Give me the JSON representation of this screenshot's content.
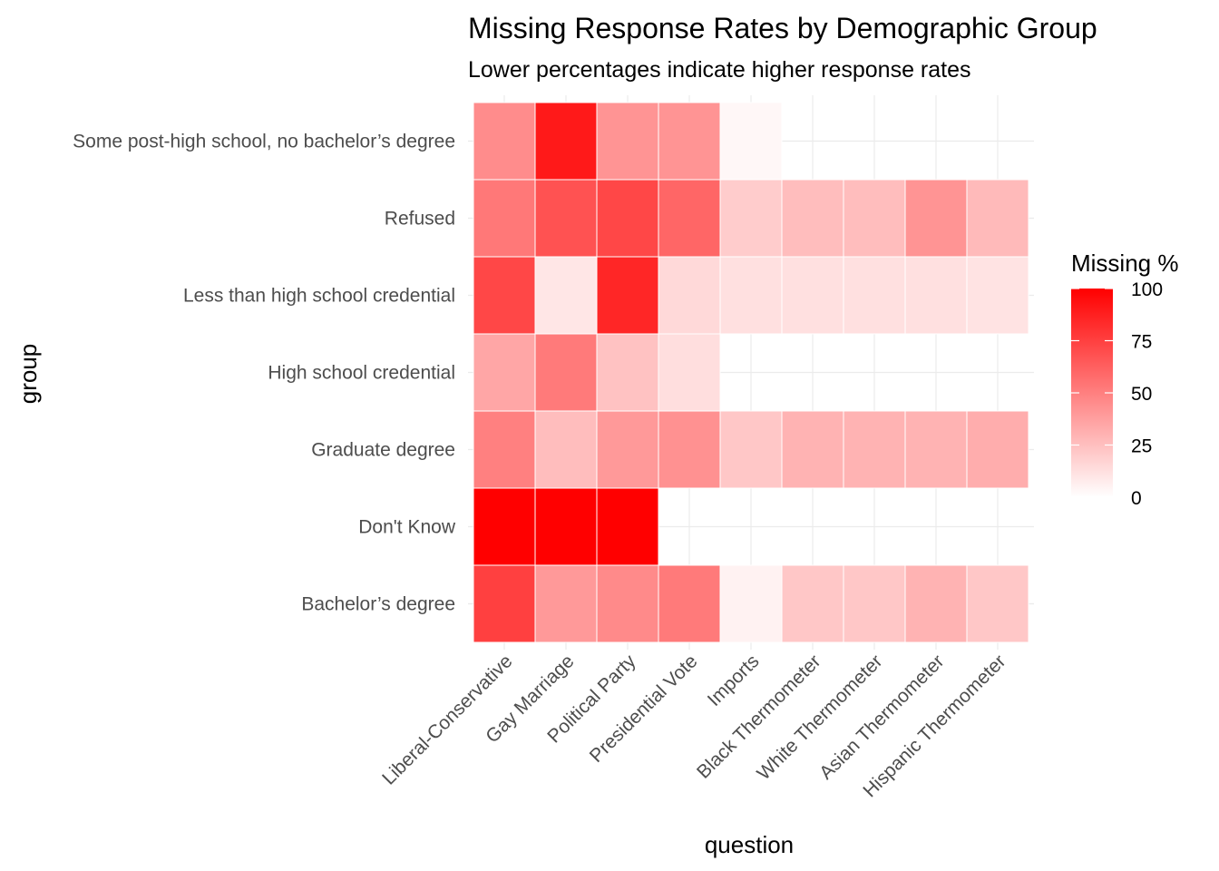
{
  "chart_data": {
    "type": "heatmap",
    "title": "Missing Response Rates by Demographic Group",
    "subtitle": "Lower percentages indicate higher response rates",
    "xlabel": "question",
    "ylabel": "group",
    "x_categories": [
      "Liberal-Conservative",
      "Gay Marriage",
      "Political Party",
      "Presidential Vote",
      "Imports",
      "Black Thermometer",
      "White Thermometer",
      "Asian Thermometer",
      "Hispanic Thermometer"
    ],
    "y_categories": [
      "Some post-high school, no bachelor’s degree",
      "Refused",
      "Less than high school credential",
      "High school credential",
      "Graduate degree",
      "Don't Know",
      "Bachelor’s degree"
    ],
    "values": [
      [
        45,
        90,
        42,
        42,
        3,
        null,
        null,
        null,
        null
      ],
      [
        53,
        68,
        72,
        60,
        20,
        26,
        26,
        42,
        27
      ],
      [
        72,
        10,
        85,
        15,
        12,
        12,
        12,
        12,
        11
      ],
      [
        35,
        52,
        24,
        13,
        null,
        null,
        null,
        null,
        null
      ],
      [
        50,
        26,
        40,
        43,
        22,
        30,
        30,
        30,
        32
      ],
      [
        100,
        100,
        100,
        null,
        null,
        null,
        null,
        null,
        null
      ],
      [
        75,
        40,
        46,
        52,
        5,
        22,
        22,
        30,
        22
      ]
    ],
    "legend": {
      "title": "Missing %",
      "min": 0,
      "max": 100,
      "ticks": [
        "0",
        "25",
        "50",
        "75",
        "100"
      ],
      "low_color": "#ffffff",
      "high_color": "#ff0000",
      "position": "right"
    },
    "grid": true
  }
}
